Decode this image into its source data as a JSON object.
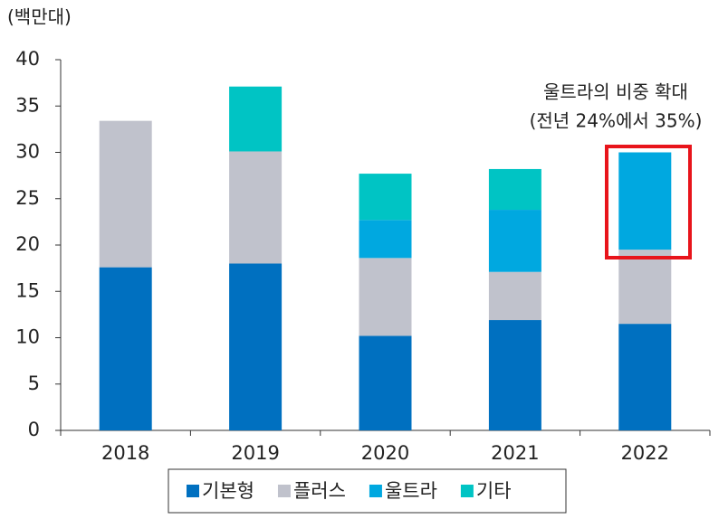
{
  "chart_data": {
    "type": "stacked_bar",
    "ylabel": "(백만대)",
    "categories": [
      "2018",
      "2019",
      "2020",
      "2021",
      "2022"
    ],
    "series": [
      {
        "name": "기본형",
        "color": "#0070c0",
        "values": [
          17.6,
          18.0,
          10.2,
          11.9,
          11.5
        ]
      },
      {
        "name": "플러스",
        "color": "#c0c2cc",
        "values": [
          15.8,
          12.1,
          8.4,
          5.2,
          8.0
        ]
      },
      {
        "name": "울트라",
        "color": "#00a8e0",
        "values": [
          null,
          null,
          4.1,
          6.7,
          10.5
        ]
      },
      {
        "name": "기타",
        "color": "#00c4c4",
        "values": [
          null,
          7.0,
          5.0,
          4.4,
          null
        ]
      }
    ],
    "ylim": [
      0,
      40
    ],
    "yticks": [
      0,
      5,
      10,
      15,
      20,
      25,
      30,
      35,
      40
    ],
    "annotation": [
      "울트라의 비중 확대",
      "(전년 24%에서 35%)"
    ]
  }
}
